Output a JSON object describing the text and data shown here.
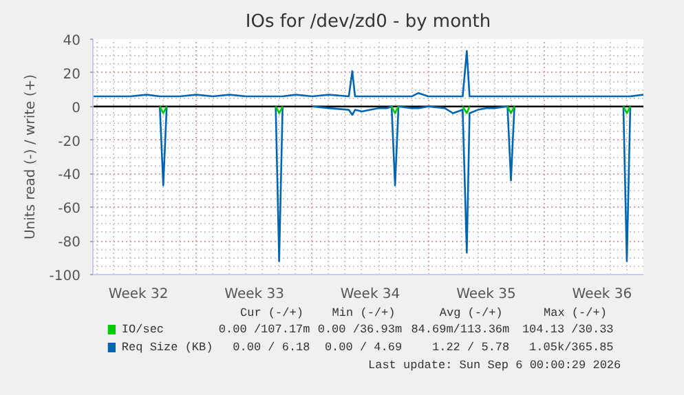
{
  "chart_data": {
    "type": "line",
    "title": "IOs for /dev/zd0 - by month",
    "ylabel": "Units read (-) / write (+)",
    "x": [
      "2026-08-03T18:00",
      "2026-08-05T00:00",
      "2026-08-06T00:00",
      "2026-08-07T00:00",
      "2026-08-07T19:00",
      "2026-08-08T00:00",
      "2026-08-08T05:00",
      "2026-08-09T00:00",
      "2026-08-10T00:00",
      "2026-08-11T00:00",
      "2026-08-12T00:00",
      "2026-08-13T00:00",
      "2026-08-14T00:00",
      "2026-08-14T19:00",
      "2026-08-15T00:00",
      "2026-08-15T05:00",
      "2026-08-16T00:00",
      "2026-08-17T00:00",
      "2026-08-18T00:00",
      "2026-08-19T05:00",
      "2026-08-19T10:00",
      "2026-08-19T14:00",
      "2026-08-20T00:00",
      "2026-08-20T12:00",
      "2026-08-21T00:00",
      "2026-08-21T12:00",
      "2026-08-21T19:00",
      "2026-08-22T00:00",
      "2026-08-22T05:00",
      "2026-08-23T00:00",
      "2026-08-23T10:00",
      "2026-08-24T00:00",
      "2026-08-25T00:00",
      "2026-08-25T12:00",
      "2026-08-26T02:00",
      "2026-08-26T08:00",
      "2026-08-26T12:00",
      "2026-08-27T00:00",
      "2026-08-27T12:00",
      "2026-08-28T00:00",
      "2026-08-28T19:00",
      "2026-08-29T00:00",
      "2026-08-29T05:00",
      "2026-08-30T00:00",
      "2026-08-31T00:00",
      "2026-09-01T00:00",
      "2026-09-02T00:00",
      "2026-09-03T00:00",
      "2026-09-04T00:00",
      "2026-09-04T19:00",
      "2026-09-05T00:00",
      "2026-09-05T05:00",
      "2026-09-06T00:00"
    ],
    "series": [
      {
        "name": "IO/sec",
        "color": "#00cc00",
        "values": [
          null,
          null,
          null,
          null,
          0,
          -4,
          0,
          null,
          null,
          null,
          null,
          null,
          null,
          0,
          -4,
          0,
          null,
          null,
          null,
          null,
          null,
          null,
          null,
          null,
          null,
          null,
          0,
          -4,
          0,
          null,
          null,
          null,
          null,
          null,
          0,
          -4,
          0,
          null,
          null,
          null,
          0,
          -4,
          0,
          null,
          null,
          null,
          null,
          null,
          null,
          0,
          -4,
          0,
          null
        ]
      },
      {
        "name": "Req Size (KB)",
        "color": "#0066b3",
        "values": [
          null,
          null,
          null,
          null,
          0,
          -47,
          0,
          null,
          null,
          null,
          null,
          null,
          null,
          0,
          -92,
          0,
          null,
          0,
          -1,
          -2,
          -5,
          -2,
          -3,
          -2,
          -1,
          -1,
          0,
          -47,
          0,
          -1,
          -1,
          0,
          -1,
          -4,
          -2,
          -87,
          -4,
          -2,
          -1,
          -1,
          0,
          -44,
          0,
          null,
          null,
          null,
          null,
          null,
          null,
          0,
          -92,
          0,
          null
        ]
      },
      {
        "color": "#0066b3",
        "values": [
          6,
          6,
          6,
          7,
          6,
          6,
          6,
          6,
          7,
          6,
          7,
          6,
          6,
          6,
          6,
          6,
          7,
          6,
          7,
          6,
          21,
          6,
          6,
          6,
          6,
          6,
          6,
          6,
          6,
          6,
          8,
          6,
          6,
          6,
          6,
          33,
          6,
          6,
          6,
          6,
          6,
          6,
          6,
          6,
          6,
          6,
          6,
          6,
          6,
          6,
          6,
          6,
          7
        ]
      }
    ],
    "xlim": [
      "2026-08-03T18:00",
      "2026-09-06T00:00"
    ],
    "xticks": [
      {
        "value": "2026-08-06T12:00",
        "label": "Week 32"
      },
      {
        "value": "2026-08-10T00:00",
        "label": null
      },
      {
        "value": "2026-08-13T12:00",
        "label": "Week 33"
      },
      {
        "value": "2026-08-17T00:00",
        "label": null
      },
      {
        "value": "2026-08-20T12:00",
        "label": "Week 34"
      },
      {
        "value": "2026-08-24T00:00",
        "label": null
      },
      {
        "value": "2026-08-27T12:00",
        "label": "Week 35"
      },
      {
        "value": "2026-08-31T00:00",
        "label": null
      },
      {
        "value": "2026-09-03T12:00",
        "label": "Week 36"
      }
    ],
    "ylim": [
      -100,
      40
    ],
    "yticks": [
      -100,
      -80,
      -60,
      -40,
      -20,
      0,
      20,
      40
    ],
    "ref_lines": [
      {
        "axis": "y",
        "value": 0,
        "color": "#000000"
      }
    ],
    "grid": true,
    "legend": "bottom",
    "annotations": [
      "Cur (-/+)",
      "Min (-/+)",
      "Avg (-/+)",
      "Max (-/+)",
      "0.00 /107.17m",
      "0.00 /36.93m",
      "84.69m/113.36m",
      "104.13 /30.33",
      "0.00 / 6.18",
      "0.00 / 4.69",
      "1.22 / 5.78",
      "1.05k/365.85",
      "Last update: Sun Sep  6 00:00:29 2026"
    ]
  }
}
